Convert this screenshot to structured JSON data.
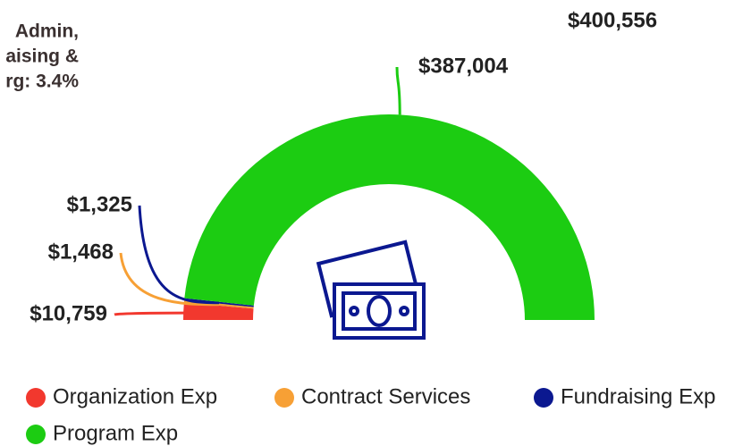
{
  "chart_data": {
    "type": "semi-donut",
    "total": {
      "value": 400556,
      "label": "$400,556"
    },
    "note_lines": [
      "Admin,",
      "aising &",
      "rg: 3.4%"
    ],
    "categories": [
      "Organization Exp",
      "Contract Services",
      "Fundraising Exp",
      "Program Exp"
    ],
    "values": [
      10759,
      1468,
      1325,
      387004
    ],
    "value_labels": [
      "$10,759",
      "$1,468",
      "$1,325",
      "$387,004"
    ],
    "colors": [
      "#f2382e",
      "#f7a035",
      "#0b1890",
      "#1ccc12"
    ]
  }
}
